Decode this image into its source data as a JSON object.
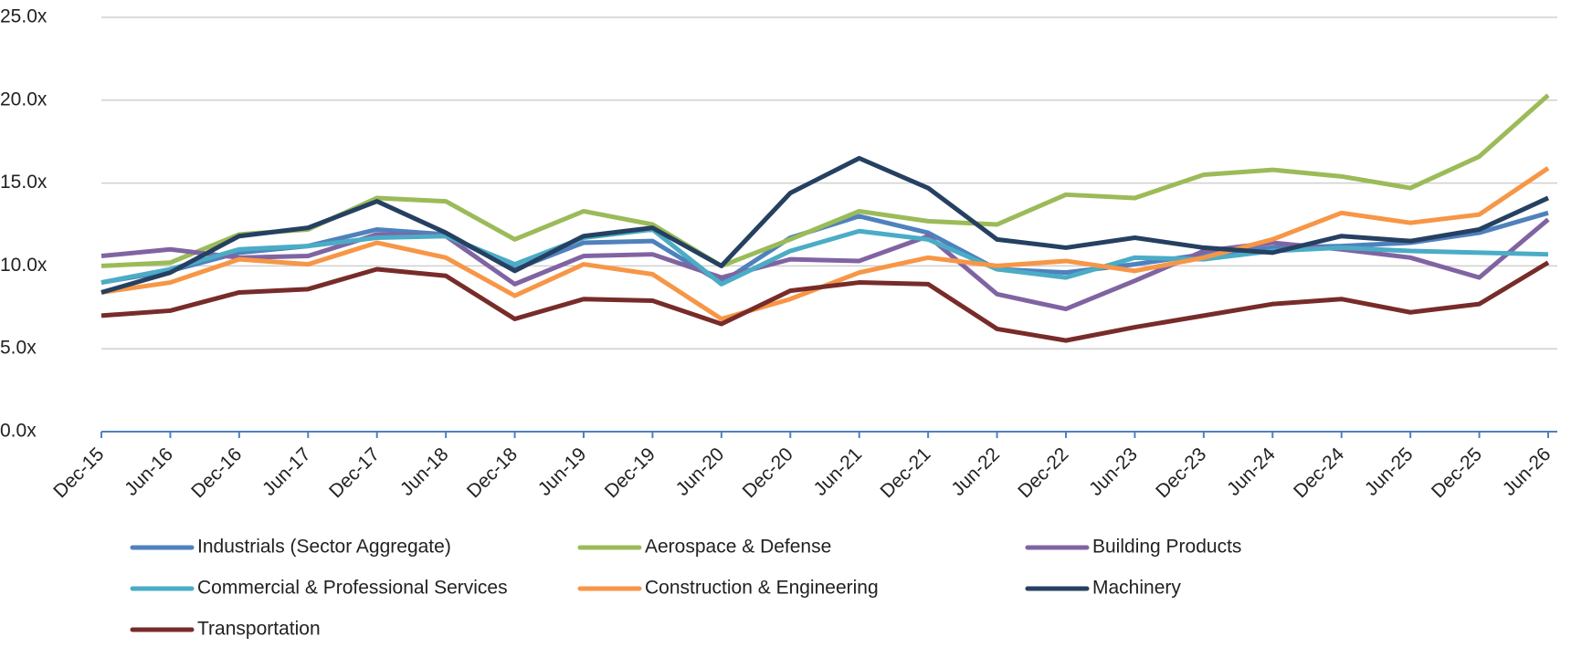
{
  "chart_data": {
    "type": "line",
    "categories": [
      "Dec-15",
      "Jun-16",
      "Dec-16",
      "Jun-17",
      "Dec-17",
      "Jun-18",
      "Dec-18",
      "Jun-19",
      "Dec-19",
      "Jun-20",
      "Dec-20",
      "Jun-21",
      "Dec-21",
      "Jun-22",
      "Dec-22",
      "Jun-23",
      "Dec-23",
      "Jun-24",
      "Dec-24",
      "Jun-25",
      "Dec-25",
      "Jun-26"
    ],
    "ylim": [
      0,
      25
    ],
    "yticks": [
      {
        "value": 0,
        "label": "0.0x"
      },
      {
        "value": 5,
        "label": "5.0x"
      },
      {
        "value": 10,
        "label": "10.0x"
      },
      {
        "value": 15,
        "label": "15.0x"
      },
      {
        "value": 20,
        "label": "20.0x"
      },
      {
        "value": 25,
        "label": "25.0x"
      }
    ],
    "grid": true,
    "series": [
      {
        "name": "Industrials (Sector Aggregate)",
        "color": "#4f81bd",
        "values": [
          9.0,
          9.7,
          10.8,
          11.2,
          12.2,
          11.9,
          9.8,
          11.4,
          11.5,
          9.0,
          11.7,
          13.0,
          12.0,
          9.8,
          9.6,
          10.1,
          10.7,
          11.1,
          11.2,
          11.4,
          12.0,
          13.2
        ]
      },
      {
        "name": "Aerospace & Defense",
        "color": "#9bbb59",
        "values": [
          10.0,
          10.2,
          11.9,
          12.2,
          14.1,
          13.9,
          11.6,
          13.3,
          12.5,
          10.0,
          11.6,
          13.3,
          12.7,
          12.5,
          14.3,
          14.1,
          15.5,
          15.8,
          15.4,
          14.7,
          16.6,
          20.3
        ]
      },
      {
        "name": "Building Products",
        "color": "#8064a2",
        "values": [
          10.6,
          11.0,
          10.5,
          10.6,
          11.9,
          11.8,
          8.9,
          10.6,
          10.7,
          9.3,
          10.4,
          10.3,
          11.8,
          8.3,
          7.4,
          9.1,
          10.9,
          11.4,
          11.0,
          10.5,
          9.3,
          12.8
        ]
      },
      {
        "name": "Commercial & Professional Services",
        "color": "#4bacc6",
        "values": [
          9.0,
          9.8,
          11.0,
          11.2,
          11.7,
          11.8,
          10.1,
          11.7,
          12.2,
          8.9,
          10.9,
          12.1,
          11.6,
          9.8,
          9.3,
          10.5,
          10.4,
          10.9,
          11.1,
          10.9,
          10.8,
          10.7
        ]
      },
      {
        "name": "Construction & Engineering",
        "color": "#f79646",
        "values": [
          8.4,
          9.0,
          10.4,
          10.1,
          11.4,
          10.5,
          8.2,
          10.1,
          9.5,
          6.8,
          8.0,
          9.6,
          10.5,
          10.0,
          10.3,
          9.7,
          10.5,
          11.6,
          13.2,
          12.6,
          13.1,
          15.9
        ]
      },
      {
        "name": "Machinery",
        "color": "#254061",
        "values": [
          8.4,
          9.6,
          11.8,
          12.3,
          13.9,
          12.0,
          9.7,
          11.8,
          12.3,
          10.0,
          14.4,
          16.5,
          14.7,
          11.6,
          11.1,
          11.7,
          11.1,
          10.8,
          11.8,
          11.5,
          12.2,
          14.1
        ]
      },
      {
        "name": "Transportation",
        "color": "#772c2a",
        "values": [
          7.0,
          7.3,
          8.4,
          8.6,
          9.8,
          9.4,
          6.8,
          8.0,
          7.9,
          6.5,
          8.5,
          9.0,
          8.9,
          6.2,
          5.5,
          6.3,
          7.0,
          7.7,
          8.0,
          7.2,
          7.7,
          10.2
        ]
      }
    ]
  }
}
